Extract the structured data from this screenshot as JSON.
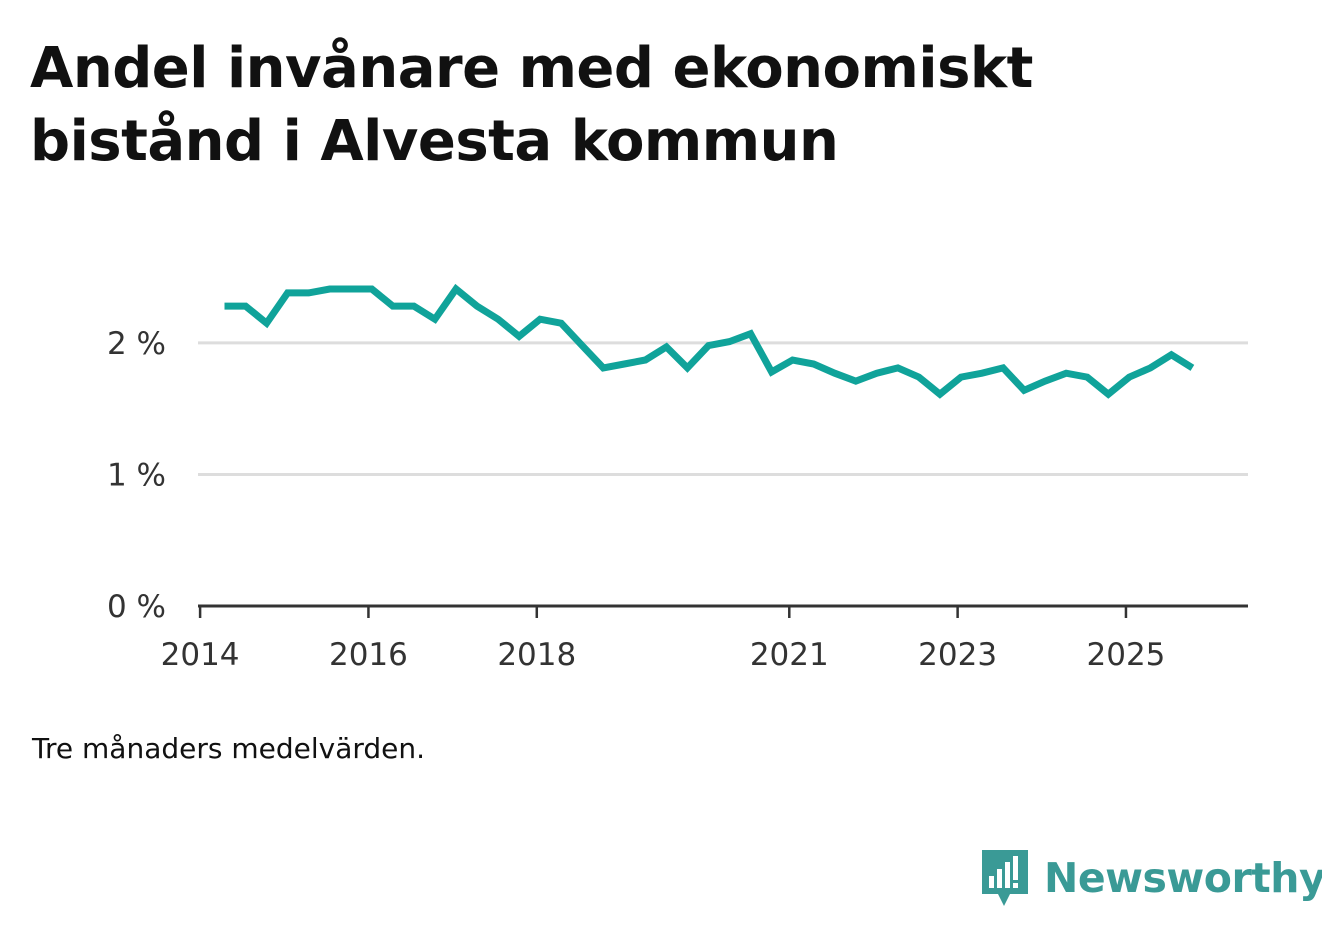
{
  "title": "Andel invånare med ekonomiskt bistånd i Alvesta kommun",
  "note": "Tre månaders medelvärden.",
  "brand": {
    "name": "Newsworthy",
    "color": "#3a9a96",
    "icon": "newsworthy-bars-icon"
  },
  "colors": {
    "line": "#10a39a",
    "grid": "#dddddd",
    "axis": "#333333",
    "text": "#333333"
  },
  "chart_data": {
    "type": "line",
    "title": "Andel invånare med ekonomiskt bistånd i Alvesta kommun",
    "xlabel": "",
    "ylabel": "",
    "ylim": [
      0,
      2.6
    ],
    "xlim": [
      2013.975,
      2026.45
    ],
    "grid": true,
    "y_ticks": [
      0,
      1,
      2
    ],
    "y_tick_labels": [
      "0 %",
      "1 %",
      "2 %"
    ],
    "x_ticks": [
      2014,
      2016,
      2018,
      2021,
      2023,
      2025
    ],
    "x_tick_labels": [
      "2014",
      "2016",
      "2018",
      "2021",
      "2023",
      "2025"
    ],
    "series": [
      {
        "name": "Andel invånare med ekonomiskt bistånd",
        "x": [
          2014.29,
          2014.54,
          2014.79,
          2015.04,
          2015.29,
          2015.54,
          2015.79,
          2016.04,
          2016.29,
          2016.54,
          2016.79,
          2017.04,
          2017.29,
          2017.54,
          2017.79,
          2018.04,
          2018.29,
          2018.54,
          2018.79,
          2019.04,
          2019.29,
          2019.54,
          2019.79,
          2020.04,
          2020.29,
          2020.54,
          2020.79,
          2021.04,
          2021.29,
          2021.54,
          2021.79,
          2022.04,
          2022.29,
          2022.54,
          2022.79,
          2023.04,
          2023.29,
          2023.54,
          2023.79,
          2024.04,
          2024.29,
          2024.54,
          2024.79,
          2025.04,
          2025.29,
          2025.54,
          2025.79
        ],
        "values": [
          2.28,
          2.28,
          2.15,
          2.38,
          2.38,
          2.41,
          2.41,
          2.41,
          2.28,
          2.28,
          2.18,
          2.41,
          2.28,
          2.18,
          2.05,
          2.18,
          2.15,
          1.98,
          1.81,
          1.84,
          1.87,
          1.97,
          1.81,
          1.98,
          2.01,
          2.07,
          1.78,
          1.87,
          1.84,
          1.77,
          1.71,
          1.77,
          1.81,
          1.74,
          1.61,
          1.74,
          1.77,
          1.81,
          1.64,
          1.71,
          1.77,
          1.74,
          1.61,
          1.74,
          1.81,
          1.91,
          1.81
        ]
      }
    ]
  }
}
